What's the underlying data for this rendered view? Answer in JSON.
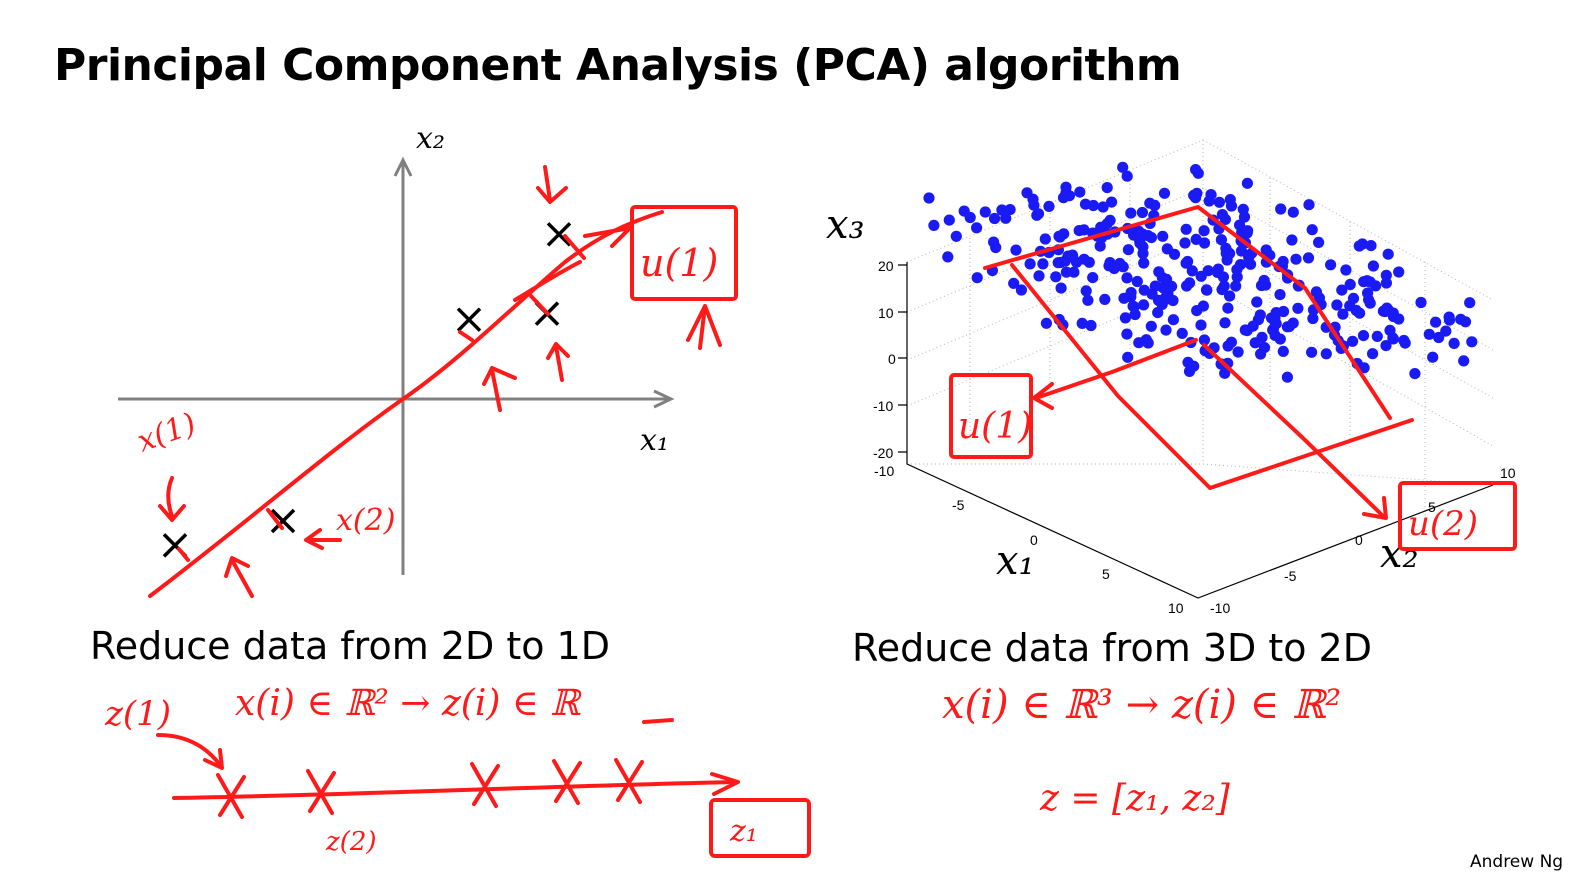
{
  "slide": {
    "title": "Principal Component Analysis (PCA) algorithm",
    "footer": "Andrew Ng"
  },
  "plot_2d": {
    "x_label": "x₁",
    "y_label": "x₂",
    "caption": "Reduce data from 2D to 1D",
    "points": [
      [
        -1.9,
        -1.2
      ],
      [
        -1.0,
        -1.0
      ],
      [
        0.55,
        0.65
      ],
      [
        1.2,
        0.7
      ],
      [
        1.3,
        1.35
      ]
    ]
  },
  "plot_3d": {
    "x1_label": "x₁",
    "x2_label": "x₂",
    "x3_label": "x₃",
    "caption": "Reduce data from 3D to 2D",
    "x3_ticks": [
      "20",
      "10",
      "0",
      "-10",
      "-20"
    ],
    "x1_ticks": [
      "-10",
      "-5",
      "0",
      "5",
      "10"
    ],
    "x2_ticks": [
      "-10",
      "-5",
      "0",
      "5",
      "10"
    ]
  },
  "annotations": {
    "u1": "u(1)",
    "u1_3d": "u(1)",
    "u2_3d": "u(2)",
    "x1_label": "x(1)",
    "x2_label": "x(2)",
    "z1_label": "z(1)",
    "eq_left": "x(i) ∈ ℝ² → z(i) ∈ ℝ",
    "eq_right": "x(i) ∈ ℝ³ → z(i) ∈ ℝ²",
    "z_vec": "z = [z₁, z₂]",
    "z1_box": "z₁",
    "z2_label": "z(2)"
  }
}
